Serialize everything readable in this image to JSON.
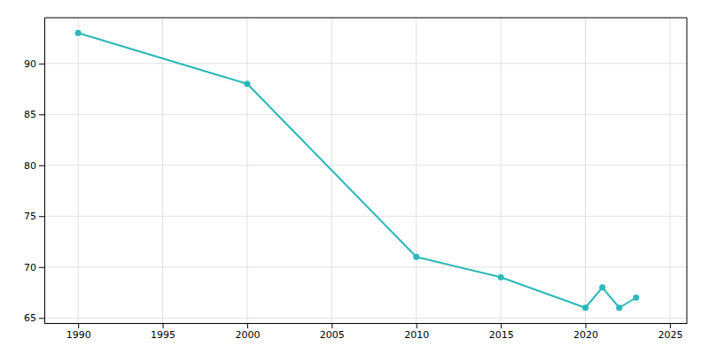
{
  "chart_data": {
    "type": "line",
    "x": [
      1990,
      2000,
      2010,
      2015,
      2020,
      2021,
      2022,
      2023
    ],
    "values": [
      93,
      88,
      71,
      69,
      66,
      68,
      66,
      67
    ],
    "color": "#2ab8b8",
    "marker": "circle",
    "xlim": [
      1988,
      2026
    ],
    "ylim": [
      64.5,
      94.5
    ],
    "xticks": [
      1990,
      1995,
      2000,
      2005,
      2010,
      2015,
      2020,
      2025
    ],
    "yticks": [
      65,
      70,
      75,
      80,
      85,
      90
    ],
    "grid": true
  }
}
